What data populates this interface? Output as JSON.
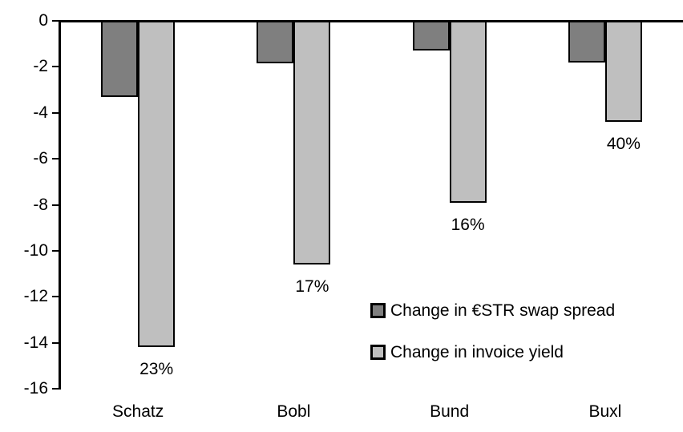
{
  "chart_data": {
    "type": "bar",
    "title": "",
    "xlabel": "",
    "ylabel": "",
    "categories": [
      "Schatz",
      "Bobl",
      "Bund",
      "Buxl"
    ],
    "series": [
      {
        "name": "Change in €STR swap spread",
        "color": "#7f7f7f",
        "values": [
          -3.3,
          -1.85,
          -1.3,
          -1.8
        ]
      },
      {
        "name": "Change in invoice yield",
        "color": "#bfbfbf",
        "values": [
          -14.2,
          -10.6,
          -7.9,
          -4.4
        ]
      }
    ],
    "bar_labels": {
      "attached_to_series": "Change in invoice yield",
      "values": [
        "23%",
        "17%",
        "16%",
        "40%"
      ]
    },
    "y_axis": {
      "min": -16,
      "max": 0,
      "tick_step": 2,
      "tick_labels": [
        "0",
        "-2",
        "-4",
        "-6",
        "-8",
        "-10",
        "-12",
        "-14",
        "-16"
      ]
    },
    "grid": false,
    "legend_position": "inside-right-middle",
    "colors": {
      "axis": "#000000",
      "bar_border": "#000000",
      "background": "#ffffff",
      "text": "#000000"
    }
  }
}
